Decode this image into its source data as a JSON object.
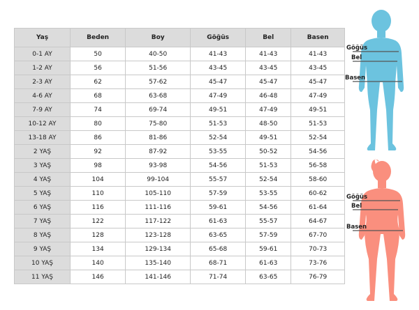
{
  "table": {
    "headers": [
      "Yaş",
      "Beden",
      "Boy",
      "Göğüs",
      "Bel",
      "Basen"
    ],
    "rows": [
      [
        "0-1 AY",
        "50",
        "40-50",
        "41-43",
        "41-43",
        "41-43"
      ],
      [
        "1-2 AY",
        "56",
        "51-56",
        "43-45",
        "43-45",
        "43-45"
      ],
      [
        "2-3 AY",
        "62",
        "57-62",
        "45-47",
        "45-47",
        "45-47"
      ],
      [
        "4-6 AY",
        "68",
        "63-68",
        "47-49",
        "46-48",
        "47-49"
      ],
      [
        "7-9 AY",
        "74",
        "69-74",
        "49-51",
        "47-49",
        "49-51"
      ],
      [
        "10-12 AY",
        "80",
        "75-80",
        "51-53",
        "48-50",
        "51-53"
      ],
      [
        "13-18 AY",
        "86",
        "81-86",
        "52-54",
        "49-51",
        "52-54"
      ],
      [
        "2 YAŞ",
        "92",
        "87-92",
        "53-55",
        "50-52",
        "54-56"
      ],
      [
        "3 YAŞ",
        "98",
        "93-98",
        "54-56",
        "51-53",
        "56-58"
      ],
      [
        "4 YAŞ",
        "104",
        "99-104",
        "55-57",
        "52-54",
        "58-60"
      ],
      [
        "5 YAŞ",
        "110",
        "105-110",
        "57-59",
        "53-55",
        "60-62"
      ],
      [
        "6 YAŞ",
        "116",
        "111-116",
        "59-61",
        "54-56",
        "61-64"
      ],
      [
        "7 YAŞ",
        "122",
        "117-122",
        "61-63",
        "55-57",
        "64-67"
      ],
      [
        "8 YAŞ",
        "128",
        "123-128",
        "63-65",
        "57-59",
        "67-70"
      ],
      [
        "9 YAŞ",
        "134",
        "129-134",
        "65-68",
        "59-61",
        "70-73"
      ],
      [
        "10 YAŞ",
        "140",
        "135-140",
        "68-71",
        "61-63",
        "73-76"
      ],
      [
        "11 YAŞ",
        "146",
        "141-146",
        "71-74",
        "63-65",
        "76-79"
      ]
    ]
  },
  "figures": {
    "boy": {
      "color": "#6cc3df",
      "labels": [
        "Göğüs",
        "Bel",
        "Basen"
      ]
    },
    "girl": {
      "color": "#fa8f7e",
      "labels": [
        "Göğüs",
        "Bel",
        "Basen"
      ]
    }
  }
}
